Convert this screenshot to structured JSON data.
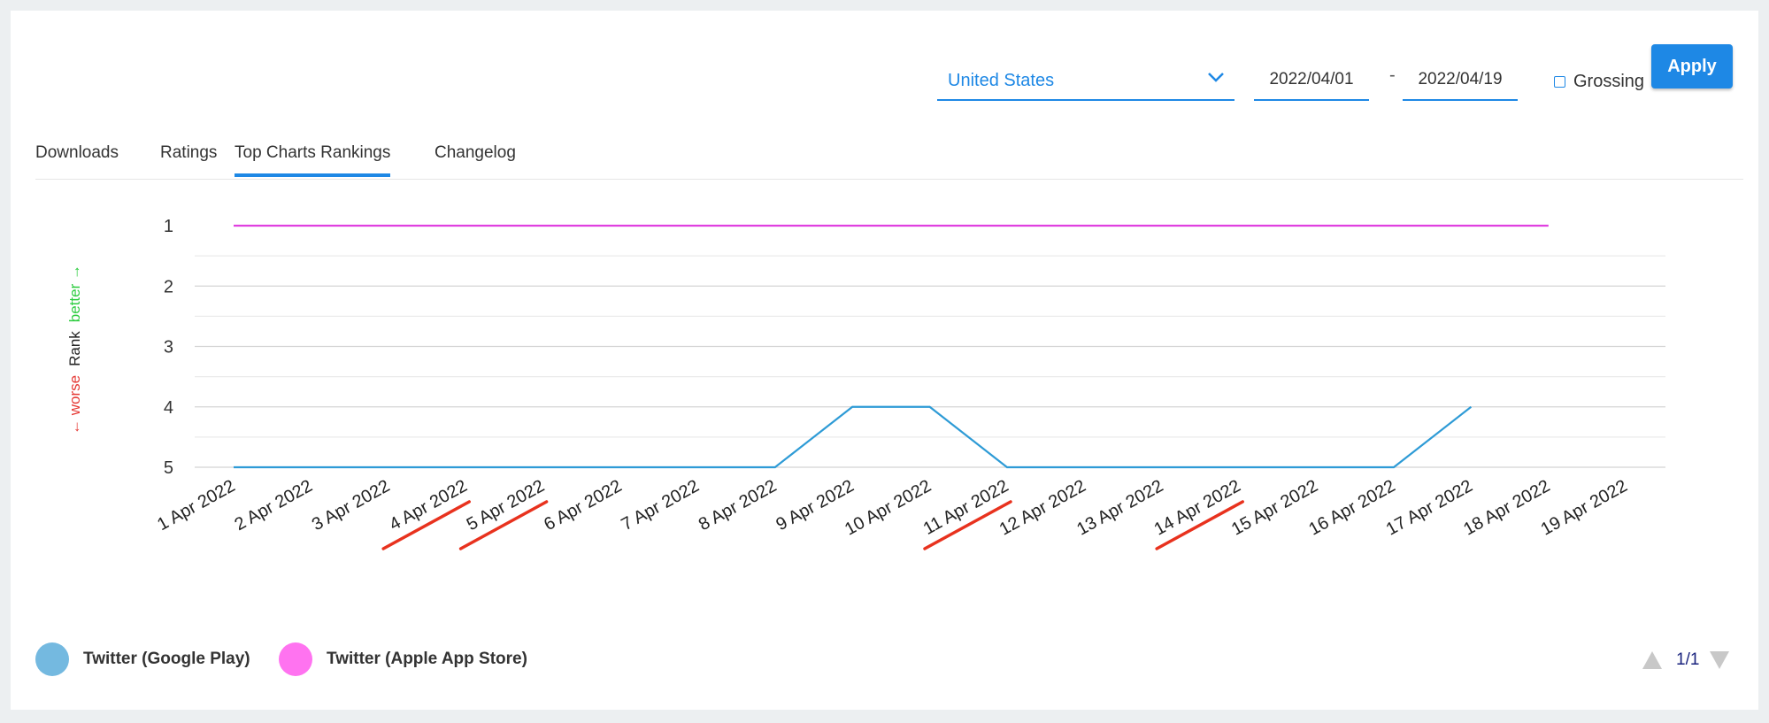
{
  "toolbar": {
    "country": "United States",
    "date_from": "2022/04/01",
    "date_sep": "-",
    "date_to": "2022/04/19",
    "grossing_label": "Grossing",
    "grossing_checked": false,
    "apply_label": "Apply"
  },
  "tabs": [
    {
      "label": "Downloads",
      "active": false
    },
    {
      "label": "Ratings",
      "active": false
    },
    {
      "label": "Top Charts Rankings",
      "active": true
    },
    {
      "label": "Changelog",
      "active": false
    }
  ],
  "y_side_label": {
    "worse": "← worse",
    "rank": "Rank",
    "better": "better →"
  },
  "chart_data": {
    "type": "line",
    "title": "",
    "ylabel": "Rank",
    "y_inverted": true,
    "ylim": [
      1,
      5
    ],
    "yticks": [
      1,
      2,
      3,
      4,
      5
    ],
    "grid": true,
    "categories": [
      "1 Apr 2022",
      "2 Apr 2022",
      "3 Apr 2022",
      "4 Apr 2022",
      "5 Apr 2022",
      "6 Apr 2022",
      "7 Apr 2022",
      "8 Apr 2022",
      "9 Apr 2022",
      "10 Apr 2022",
      "11 Apr 2022",
      "12 Apr 2022",
      "13 Apr 2022",
      "14 Apr 2022",
      "15 Apr 2022",
      "16 Apr 2022",
      "17 Apr 2022",
      "18 Apr 2022",
      "19 Apr 2022"
    ],
    "underlined_categories": [
      "4 Apr 2022",
      "5 Apr 2022",
      "11 Apr 2022",
      "14 Apr 2022"
    ],
    "series": [
      {
        "name": "Twitter (Google Play)",
        "color": "#2e9bd6",
        "values": [
          5,
          5,
          5,
          5,
          5,
          5,
          5,
          5,
          4,
          4,
          5,
          5,
          5,
          5,
          5,
          5,
          4,
          null,
          null
        ]
      },
      {
        "name": "Twitter (Apple App Store)",
        "color": "#e040e0",
        "values": [
          1,
          1,
          1,
          1,
          1,
          1,
          1,
          1,
          1,
          1,
          1,
          1,
          1,
          1,
          1,
          1,
          1,
          1,
          null
        ]
      }
    ],
    "legend_position": "bottom-left"
  },
  "legend": [
    {
      "label": "Twitter (Google Play)",
      "color": "#74b9e0"
    },
    {
      "label": "Twitter (Apple App Store)",
      "color": "#ff73f0"
    }
  ],
  "pager": {
    "label": "1/1"
  },
  "colors": {
    "accent": "#1e88e5",
    "underline": "#e8321e"
  }
}
